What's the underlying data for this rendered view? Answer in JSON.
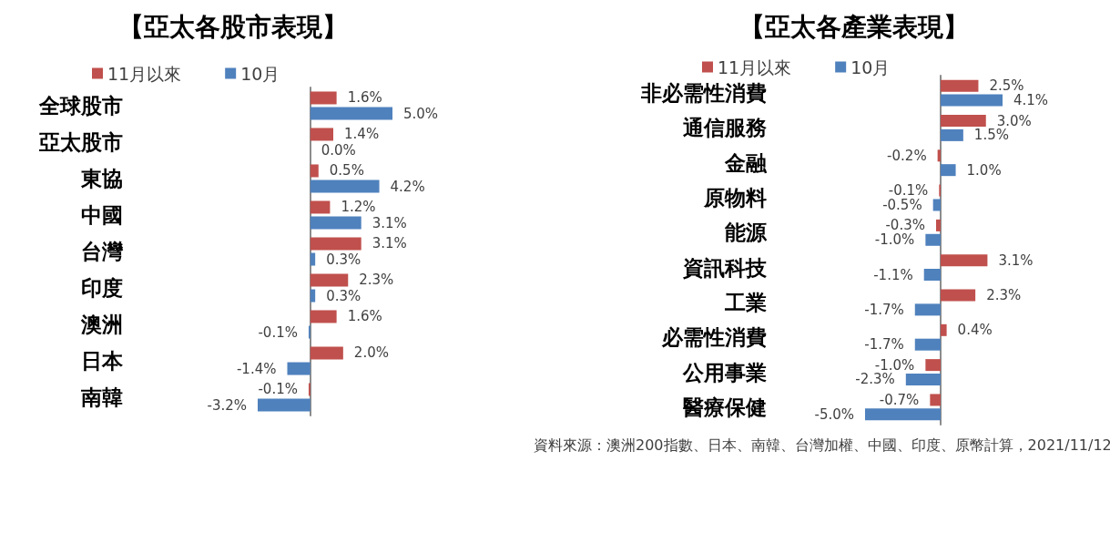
{
  "chart_data": [
    {
      "type": "bar",
      "orientation": "horizontal",
      "title": "【亞太各股市表現】",
      "categories": [
        "全球股市",
        "亞太股市",
        "東協",
        "中國",
        "台灣",
        "印度",
        "澳洲",
        "日本",
        "南韓"
      ],
      "series": [
        {
          "name": "11月以來",
          "color": "#c0504d",
          "values": [
            1.6,
            1.4,
            0.5,
            1.2,
            3.1,
            2.3,
            1.6,
            2.0,
            -0.1
          ],
          "value_labels": [
            "1.6%",
            "1.4%",
            "0.5%",
            "1.2%",
            "3.1%",
            "2.3%",
            "1.6%",
            "2.0%",
            "-0.1%"
          ]
        },
        {
          "name": "10月",
          "color": "#4f81bd",
          "values": [
            5.0,
            0.0,
            4.2,
            3.1,
            0.3,
            0.3,
            -0.1,
            -1.4,
            -3.2
          ],
          "value_labels": [
            "5.0%",
            "0.0%",
            "4.2%",
            "3.1%",
            "0.3%",
            "0.3%",
            "-0.1%",
            "-1.4%",
            "-3.2%"
          ]
        }
      ],
      "legend": "top",
      "tick_labels": "y"
    },
    {
      "type": "bar",
      "orientation": "horizontal",
      "title": "【亞太各產業表現】",
      "categories": [
        "非必需性消費",
        "通信服務",
        "金融",
        "原物料",
        "能源",
        "資訊科技",
        "工業",
        "必需性消費",
        "公用事業",
        "醫療保健"
      ],
      "series": [
        {
          "name": "11月以來",
          "color": "#c0504d",
          "values": [
            2.5,
            3.0,
            -0.2,
            -0.1,
            -0.3,
            3.1,
            2.3,
            0.4,
            -1.0,
            -0.7
          ],
          "value_labels": [
            "2.5%",
            "3.0%",
            "-0.2%",
            "-0.1%",
            "-0.3%",
            "3.1%",
            "2.3%",
            "0.4%",
            "-1.0%",
            "-0.7%"
          ]
        },
        {
          "name": "10月",
          "color": "#4f81bd",
          "values": [
            4.1,
            1.5,
            1.0,
            -0.5,
            -1.0,
            -1.1,
            -1.7,
            -1.7,
            -2.3,
            -5.0
          ],
          "value_labels": [
            "4.1%",
            "1.5%",
            "1.0%",
            "-0.5%",
            "-1.0%",
            "-1.1%",
            "-1.7%",
            "-1.7%",
            "-2.3%",
            "-5.0%"
          ]
        }
      ],
      "legend": "top",
      "tick_labels": "y",
      "annotations": [
        "資料來源：澳洲200指數、日本、南韓、台灣加權、中國、印度、原幣計算，2021/11/12"
      ]
    }
  ]
}
